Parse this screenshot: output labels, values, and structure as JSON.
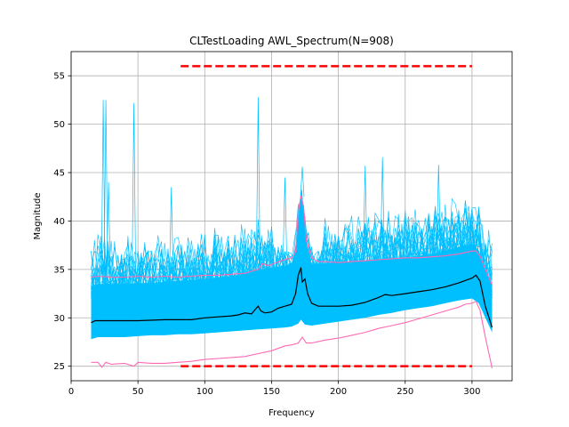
{
  "chart_data": {
    "type": "line",
    "title": "CLTestLoading AWL_Spectrum(N=908)",
    "xlabel": "Frequency",
    "ylabel": "Magnitude",
    "xlim": [
      0,
      330
    ],
    "ylim": [
      23.5,
      57.5
    ],
    "xticks": [
      0,
      50,
      100,
      150,
      200,
      250,
      300
    ],
    "yticks": [
      25,
      30,
      35,
      40,
      45,
      50,
      55
    ],
    "grid": true,
    "colors": {
      "band": "#00bfff",
      "mean": "#000000",
      "envelope": "#ff69b4",
      "limits": "#ff0000"
    },
    "band_upper": {
      "x": [
        15,
        20,
        30,
        40,
        50,
        60,
        70,
        80,
        90,
        100,
        110,
        120,
        130,
        140,
        150,
        160,
        165,
        168,
        170,
        172,
        174,
        176,
        180,
        190,
        200,
        210,
        220,
        230,
        240,
        250,
        260,
        270,
        280,
        290,
        300,
        305,
        310,
        315
      ],
      "y": [
        33.3,
        33.5,
        33.5,
        33.5,
        33.6,
        33.6,
        33.7,
        33.8,
        33.9,
        34.0,
        34.2,
        34.3,
        34.6,
        34.9,
        35.2,
        35.4,
        35.6,
        36.5,
        40.0,
        42.0,
        41.0,
        37.0,
        35.6,
        35.6,
        35.7,
        35.8,
        35.9,
        36.0,
        36.1,
        36.2,
        36.4,
        36.6,
        36.9,
        37.3,
        37.6,
        37.0,
        35.0,
        33.5
      ]
    },
    "band_lower": {
      "x": [
        15,
        20,
        30,
        40,
        50,
        60,
        70,
        80,
        90,
        100,
        110,
        120,
        130,
        140,
        150,
        160,
        165,
        170,
        172,
        175,
        180,
        190,
        200,
        210,
        220,
        230,
        240,
        250,
        260,
        270,
        280,
        290,
        300,
        305,
        310,
        315
      ],
      "y": [
        27.8,
        28.0,
        28.0,
        28.0,
        28.1,
        28.2,
        28.2,
        28.3,
        28.3,
        28.4,
        28.5,
        28.6,
        28.7,
        28.8,
        28.9,
        29.0,
        29.1,
        29.4,
        29.8,
        29.3,
        29.2,
        29.4,
        29.6,
        29.8,
        30.0,
        30.3,
        30.5,
        30.8,
        31.0,
        31.2,
        31.5,
        31.8,
        32.0,
        31.5,
        30.0,
        28.5
      ]
    },
    "mean": {
      "x": [
        15,
        18,
        30,
        50,
        70,
        90,
        100,
        110,
        120,
        125,
        130,
        135,
        138,
        140,
        142,
        145,
        150,
        155,
        160,
        165,
        168,
        170,
        172,
        173,
        175,
        177,
        180,
        185,
        190,
        200,
        210,
        220,
        230,
        235,
        240,
        250,
        260,
        270,
        280,
        290,
        300,
        303,
        306,
        310,
        315
      ],
      "y": [
        29.5,
        29.7,
        29.7,
        29.7,
        29.8,
        29.8,
        30.0,
        30.1,
        30.2,
        30.3,
        30.5,
        30.4,
        30.9,
        31.2,
        30.7,
        30.5,
        30.6,
        31.0,
        31.2,
        31.4,
        32.5,
        34.4,
        35.2,
        33.7,
        34.0,
        32.5,
        31.5,
        31.2,
        31.2,
        31.2,
        31.3,
        31.6,
        32.1,
        32.4,
        32.3,
        32.5,
        32.7,
        32.9,
        33.2,
        33.6,
        34.1,
        34.4,
        33.8,
        31.2,
        29.0
      ]
    },
    "envelope_upper": {
      "x": [
        15,
        20,
        30,
        40,
        50,
        60,
        70,
        80,
        90,
        100,
        110,
        120,
        130,
        135,
        140,
        143,
        148,
        150,
        155,
        160,
        165,
        168,
        170,
        172,
        174,
        176,
        180,
        185,
        190,
        200,
        210,
        220,
        230,
        240,
        250,
        260,
        270,
        280,
        290,
        300,
        303,
        306,
        310,
        315
      ],
      "y": [
        34.2,
        34.3,
        34.2,
        34.2,
        34.3,
        34.2,
        34.3,
        34.2,
        34.3,
        34.4,
        34.4,
        34.5,
        34.6,
        34.8,
        35.0,
        35.6,
        35.4,
        35.5,
        35.8,
        36.0,
        36.2,
        36.8,
        41.0,
        42.6,
        41.5,
        38.0,
        36.2,
        35.8,
        35.8,
        35.7,
        35.8,
        35.9,
        36.0,
        36.1,
        36.2,
        36.2,
        36.3,
        36.4,
        36.6,
        36.9,
        36.9,
        36.4,
        35.0,
        33.4
      ]
    },
    "envelope_lower": {
      "x": [
        15,
        20,
        23,
        26,
        30,
        40,
        47,
        50,
        60,
        70,
        80,
        90,
        100,
        110,
        120,
        130,
        140,
        150,
        160,
        165,
        170,
        173,
        176,
        180,
        190,
        200,
        210,
        220,
        230,
        240,
        250,
        260,
        270,
        280,
        290,
        295,
        300,
        303,
        306,
        310,
        315
      ],
      "y": [
        25.4,
        25.4,
        24.9,
        25.4,
        25.2,
        25.3,
        25.0,
        25.4,
        25.3,
        25.3,
        25.4,
        25.5,
        25.7,
        25.8,
        25.9,
        26.0,
        26.3,
        26.6,
        27.1,
        27.2,
        27.4,
        28.0,
        27.4,
        27.4,
        27.7,
        27.9,
        28.2,
        28.5,
        28.9,
        29.2,
        29.5,
        29.9,
        30.3,
        30.7,
        31.1,
        31.4,
        31.5,
        31.7,
        30.8,
        28.0,
        24.8
      ]
    },
    "spikes": [
      {
        "x": 22,
        "y": 37.0
      },
      {
        "x": 24,
        "y": 52.5
      },
      {
        "x": 26,
        "y": 52.5
      },
      {
        "x": 28,
        "y": 44.0
      },
      {
        "x": 47,
        "y": 52.2
      },
      {
        "x": 75,
        "y": 43.5
      },
      {
        "x": 140,
        "y": 52.8
      },
      {
        "x": 160,
        "y": 44.5
      },
      {
        "x": 173,
        "y": 45.6
      },
      {
        "x": 220,
        "y": 45.7
      },
      {
        "x": 233,
        "y": 46.6
      },
      {
        "x": 275,
        "y": 45.8
      }
    ],
    "limit_upper": {
      "x": [
        82,
        300
      ],
      "y": 56.0
    },
    "limit_lower": {
      "x": [
        82,
        300
      ],
      "y": 25.0
    }
  }
}
